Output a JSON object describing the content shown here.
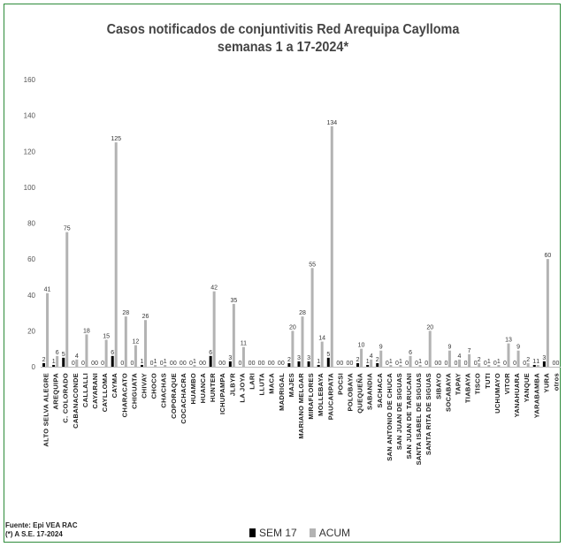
{
  "title_line1": "Casos notificados de conjuntivitis Red Arequipa Caylloma",
  "title_line2": "semanas 1 a 17-2024*",
  "source_line1": "Fuente: Epi VEA RAC",
  "source_line2": "(*) A S.E. 17-2024",
  "colors": {
    "sem17": "#000000",
    "acum": "#b3b3b3",
    "frame": "#2e8b3a"
  },
  "chart_data": {
    "type": "bar",
    "ylim": [
      0,
      160
    ],
    "yticks": [
      0,
      20,
      40,
      60,
      80,
      100,
      120,
      140,
      160
    ],
    "categories": [
      "ALTO SELVA ALEGRE",
      "AREQUIPA",
      "C. COLORADO",
      "CABANACONDE",
      "CALLALLI",
      "CAYARANI",
      "CAYLLOMA",
      "CAYMA",
      "CHARACATO",
      "CHIGUATA",
      "CHIVAY",
      "CHOCO",
      "CHACHAS",
      "COPORAQUE",
      "COCACHACRA",
      "HUAMBO",
      "HUANCA",
      "HUNTER",
      "ICHUPAMPA",
      "JLBYR",
      "LA JOYA",
      "LARI",
      "LLUTA",
      "MACA",
      "MADRIGAL",
      "MAJES",
      "MARIANO MELGAR",
      "MIRAFLORES",
      "MOLLEBAYA",
      "PAUCARPATA",
      "POCSI",
      "POLOBAYA",
      "QUEQUEÑA",
      "SABANDIA",
      "SACHACA",
      "SAN ANTONIO DE CHUCA",
      "SAN JUAN DE SIGUAS",
      "SAN JUAN DE TARUCANI",
      "SANTA ISABEL DE SIGUAS",
      "SANTA RITA DE SIGUAS",
      "SIBAYO",
      "SOCABAYA",
      "TAPAY",
      "TIABAYA",
      "TISCO",
      "TUTI",
      "UCHUMAYO",
      "VITOR",
      "YANAHUARA",
      "YANQUE",
      "YARABAMBA",
      "YURA",
      "otros"
    ],
    "series": [
      {
        "name": "SEM 17",
        "values": [
          2,
          1,
          5,
          0,
          0,
          0,
          0,
          6,
          0,
          0,
          1,
          0,
          0,
          0,
          0,
          0,
          0,
          6,
          0,
          3,
          0,
          0,
          0,
          0,
          0,
          2,
          3,
          3,
          1,
          5,
          0,
          0,
          2,
          1,
          2,
          0,
          0,
          0,
          0,
          0,
          0,
          0,
          0,
          0,
          0,
          0,
          0,
          0,
          0,
          0,
          1,
          3,
          0
        ]
      },
      {
        "name": "ACUM",
        "values": [
          41,
          6,
          75,
          4,
          18,
          0,
          15,
          125,
          28,
          12,
          26,
          1,
          1,
          0,
          0,
          1,
          0,
          42,
          0,
          35,
          11,
          0,
          0,
          0,
          0,
          20,
          28,
          55,
          14,
          134,
          0,
          0,
          10,
          4,
          9,
          1,
          1,
          6,
          1,
          20,
          0,
          9,
          4,
          7,
          2,
          1,
          1,
          13,
          9,
          2,
          1,
          60,
          0
        ]
      }
    ],
    "legend": [
      "SEM 17",
      "ACUM"
    ],
    "legend_position": "bottom",
    "grid": false
  }
}
